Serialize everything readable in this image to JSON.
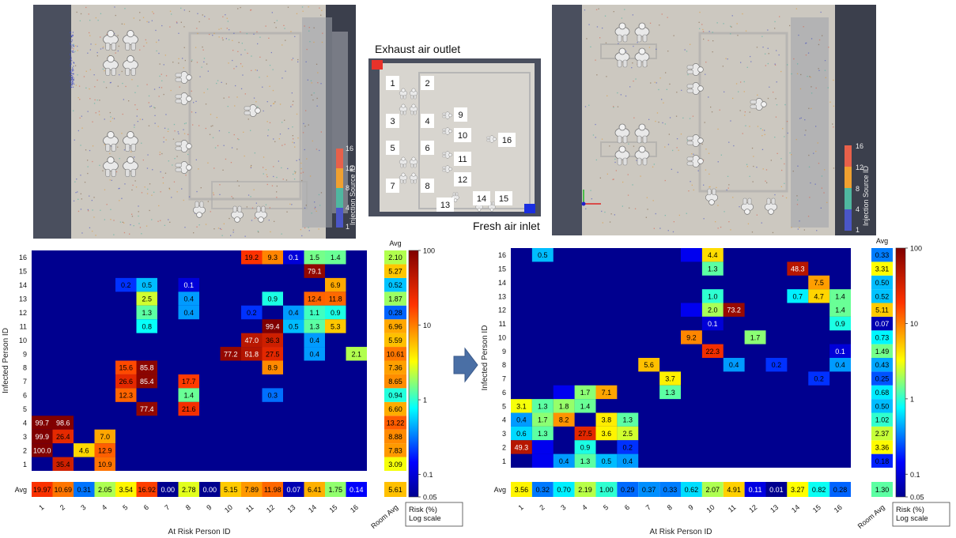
{
  "colorbar": {
    "title": "Injection Source ID",
    "ticks": [
      "16",
      "12",
      "8",
      "4",
      "1"
    ],
    "colors": [
      "#e8604a",
      "#f0a030",
      "#4fb7a0",
      "#4a56c8"
    ]
  },
  "layout_panel": {
    "exhaust_label": "Exhaust air outlet",
    "fresh_label": "Fresh air inlet",
    "exhaust_color": "#e8322a",
    "inlet_color": "#1a2ee0",
    "ids": [
      "1",
      "2",
      "3",
      "4",
      "5",
      "6",
      "7",
      "8",
      "9",
      "10",
      "11",
      "12",
      "13",
      "14",
      "15",
      "16"
    ]
  },
  "chart_data": [
    {
      "type": "heatmap",
      "scale": "log",
      "zlim": [
        0.05,
        100
      ],
      "colorbar_ticks": [
        "100",
        "10",
        "1",
        "0.1",
        "0.05"
      ],
      "colorbar_label": "Risk (%) Log scale",
      "xlabel": "At Risk Person ID",
      "ylabel": "Infected Person ID",
      "avg_label": "Avg",
      "room_avg_label": "Room Avg",
      "room_avg": "5.61",
      "x": [
        "1",
        "2",
        "3",
        "4",
        "5",
        "6",
        "7",
        "8",
        "9",
        "10",
        "11",
        "12",
        "13",
        "14",
        "15",
        "16"
      ],
      "y": [
        "1",
        "2",
        "3",
        "4",
        "5",
        "6",
        "7",
        "8",
        "9",
        "10",
        "11",
        "12",
        "13",
        "14",
        "15",
        "16"
      ],
      "cells": [
        [
          16,
          11,
          "19.2"
        ],
        [
          16,
          12,
          "9.3"
        ],
        [
          16,
          13,
          "0.1"
        ],
        [
          16,
          14,
          "1.5"
        ],
        [
          16,
          15,
          "1.4"
        ],
        [
          15,
          14,
          "79.1"
        ],
        [
          14,
          5,
          "0.2"
        ],
        [
          14,
          6,
          "0.5"
        ],
        [
          14,
          8,
          "0.1"
        ],
        [
          14,
          15,
          "6.9"
        ],
        [
          13,
          6,
          "2.5"
        ],
        [
          13,
          8,
          "0.4"
        ],
        [
          13,
          12,
          "0.9"
        ],
        [
          13,
          14,
          "12.4"
        ],
        [
          13,
          15,
          "11.8"
        ],
        [
          12,
          6,
          "1.3"
        ],
        [
          12,
          8,
          "0.4"
        ],
        [
          12,
          11,
          "0.2"
        ],
        [
          12,
          13,
          "0.4"
        ],
        [
          12,
          14,
          "1.1"
        ],
        [
          12,
          15,
          "0.9"
        ],
        [
          11,
          6,
          "0.8"
        ],
        [
          11,
          12,
          "99.4"
        ],
        [
          11,
          13,
          "0.5"
        ],
        [
          11,
          14,
          "1.3"
        ],
        [
          11,
          15,
          "5.3"
        ],
        [
          10,
          11,
          "47.0"
        ],
        [
          10,
          12,
          "36.3"
        ],
        [
          10,
          14,
          "0.4"
        ],
        [
          9,
          10,
          "77.2"
        ],
        [
          9,
          11,
          "51.8"
        ],
        [
          9,
          12,
          "27.5"
        ],
        [
          9,
          14,
          "0.4"
        ],
        [
          9,
          16,
          "2.1"
        ],
        [
          8,
          5,
          "15.6"
        ],
        [
          8,
          6,
          "85.8"
        ],
        [
          8,
          12,
          "8.9"
        ],
        [
          7,
          5,
          "26.6"
        ],
        [
          7,
          6,
          "85.4"
        ],
        [
          7,
          8,
          "17.7"
        ],
        [
          6,
          5,
          "12.3"
        ],
        [
          6,
          8,
          "1.4"
        ],
        [
          6,
          12,
          "0.3"
        ],
        [
          5,
          6,
          "77.4"
        ],
        [
          5,
          8,
          "21.6"
        ],
        [
          4,
          1,
          "99.7"
        ],
        [
          4,
          2,
          "98.6"
        ],
        [
          3,
          1,
          "99.9"
        ],
        [
          3,
          2,
          "26.4"
        ],
        [
          3,
          4,
          "7.0"
        ],
        [
          2,
          1,
          "100.0"
        ],
        [
          2,
          3,
          "4.6"
        ],
        [
          2,
          4,
          "12.9"
        ],
        [
          1,
          2,
          "35.4"
        ],
        [
          1,
          4,
          "10.9"
        ]
      ],
      "row_avg": [
        "3.09",
        "7.83",
        "8.88",
        "13.22",
        "6.60",
        "0.94",
        "8.65",
        "7.36",
        "10.61",
        "5.59",
        "6.96",
        "0.28",
        "1.87",
        "0.52",
        "5.27",
        "2.10"
      ],
      "col_avg": [
        "19.97",
        "10.69",
        "0.31",
        "2.05",
        "3.54",
        "16.92",
        "0.00",
        "2.78",
        "0.00",
        "5.15",
        "7.89",
        "11.98",
        "0.07",
        "6.41",
        "1.75",
        "0.14"
      ]
    },
    {
      "type": "heatmap",
      "scale": "log",
      "zlim": [
        0.05,
        100
      ],
      "colorbar_ticks": [
        "100",
        "10",
        "1",
        "0.1",
        "0.05"
      ],
      "colorbar_label": "Risk (%) Log scale",
      "xlabel": "At Risk Person ID",
      "ylabel": "Infected Person ID",
      "avg_label": "Avg",
      "room_avg_label": "Room Avg",
      "room_avg": "1.30",
      "x": [
        "1",
        "2",
        "3",
        "4",
        "5",
        "6",
        "7",
        "8",
        "9",
        "10",
        "11",
        "12",
        "13",
        "14",
        "15",
        "16"
      ],
      "y": [
        "1",
        "2",
        "3",
        "4",
        "5",
        "6",
        "7",
        "8",
        "9",
        "10",
        "11",
        "12",
        "13",
        "14",
        "15",
        "16"
      ],
      "cells": [
        [
          16,
          2,
          "0.5"
        ],
        [
          16,
          9,
          ""
        ],
        [
          16,
          10,
          "4.4"
        ],
        [
          15,
          10,
          "1.3"
        ],
        [
          15,
          14,
          "48.3"
        ],
        [
          14,
          15,
          "7.5"
        ],
        [
          13,
          10,
          "1.0"
        ],
        [
          13,
          14,
          "0.7"
        ],
        [
          13,
          15,
          "4.7"
        ],
        [
          13,
          16,
          "1.4"
        ],
        [
          12,
          9,
          ""
        ],
        [
          12,
          10,
          "2.0"
        ],
        [
          12,
          11,
          "73.2"
        ],
        [
          12,
          16,
          "1.4"
        ],
        [
          11,
          10,
          "0.1"
        ],
        [
          11,
          16,
          "0.9"
        ],
        [
          10,
          9,
          "9.2"
        ],
        [
          10,
          12,
          "1.7"
        ],
        [
          9,
          10,
          "22.3"
        ],
        [
          9,
          16,
          "0.1"
        ],
        [
          8,
          7,
          "5.6"
        ],
        [
          8,
          11,
          "0.4"
        ],
        [
          8,
          13,
          "0.2"
        ],
        [
          8,
          16,
          "0.4"
        ],
        [
          7,
          8,
          "3.7"
        ],
        [
          7,
          15,
          "0.2"
        ],
        [
          6,
          3,
          ""
        ],
        [
          6,
          4,
          "1.7"
        ],
        [
          6,
          5,
          "7.1"
        ],
        [
          6,
          8,
          "1.3"
        ],
        [
          5,
          1,
          "3.1"
        ],
        [
          5,
          2,
          "1.3"
        ],
        [
          5,
          3,
          "1.8"
        ],
        [
          5,
          4,
          "1.4"
        ],
        [
          4,
          1,
          "0.4"
        ],
        [
          4,
          2,
          "1.7"
        ],
        [
          4,
          3,
          "8.2"
        ],
        [
          4,
          5,
          "3.8"
        ],
        [
          4,
          6,
          "1.3"
        ],
        [
          3,
          1,
          "0.6"
        ],
        [
          3,
          2,
          "1.3"
        ],
        [
          3,
          4,
          "27.5"
        ],
        [
          3,
          5,
          "3.6"
        ],
        [
          3,
          6,
          "2.5"
        ],
        [
          2,
          1,
          "49.3"
        ],
        [
          2,
          2,
          ""
        ],
        [
          2,
          4,
          "0.9"
        ],
        [
          2,
          6,
          "0.2"
        ],
        [
          1,
          2,
          ""
        ],
        [
          1,
          3,
          "0.4"
        ],
        [
          1,
          4,
          "1.3"
        ],
        [
          1,
          5,
          "0.5"
        ],
        [
          1,
          6,
          "0.4"
        ]
      ],
      "row_avg": [
        "0.18",
        "3.36",
        "2.37",
        "1.02",
        "0.50",
        "0.68",
        "0.25",
        "0.43",
        "1.49",
        "0.73",
        "0.07",
        "5.11",
        "0.52",
        "0.50",
        "3.31",
        "0.33"
      ],
      "col_avg": [
        "3.56",
        "0.32",
        "0.70",
        "2.19",
        "1.00",
        "0.29",
        "0.37",
        "0.33",
        "0.62",
        "2.07",
        "4.91",
        "0.11",
        "0.01",
        "3.27",
        "0.82",
        "0.28"
      ]
    }
  ]
}
